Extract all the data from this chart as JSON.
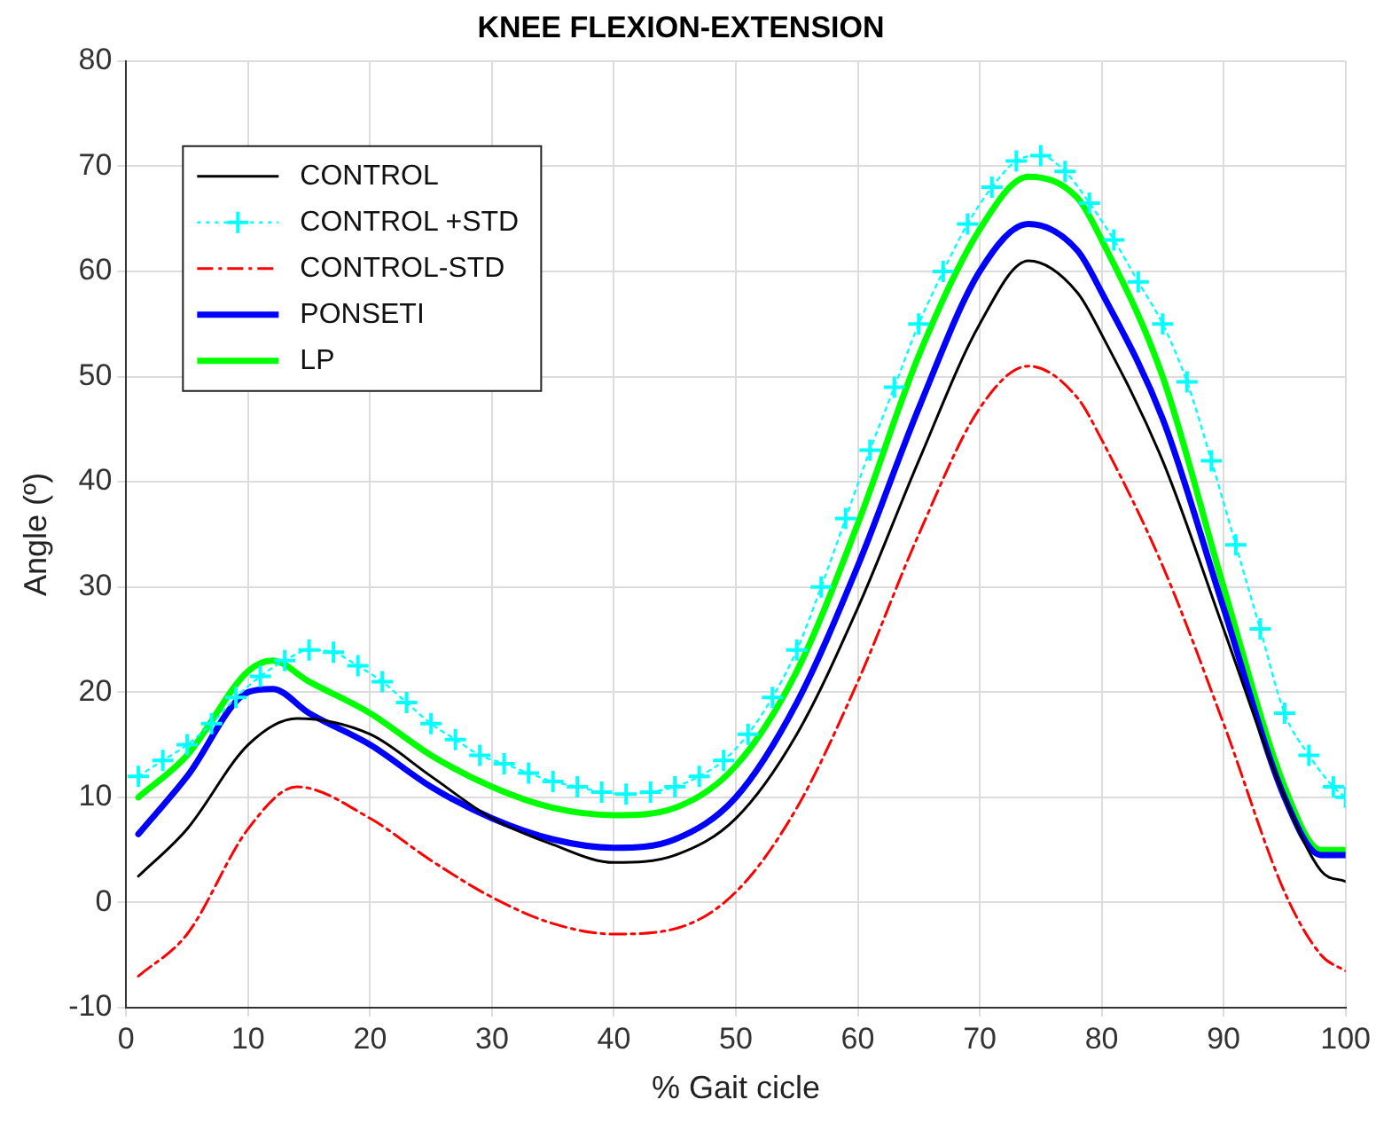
{
  "chart_data": {
    "type": "line",
    "title": "KNEE FLEXION-EXTENSION",
    "xlabel": "% Gait cicle",
    "ylabel": "Angle (º)",
    "xlim": [
      0,
      100
    ],
    "xticks": [
      0,
      10,
      20,
      30,
      40,
      50,
      60,
      70,
      80,
      90,
      100
    ],
    "ylim": [
      -10,
      80
    ],
    "yticks": [
      -10,
      0,
      10,
      20,
      30,
      40,
      50,
      60,
      70,
      80
    ],
    "grid": true,
    "legend": "top left",
    "series": [
      {
        "name": "CONTROL",
        "color": "#000000",
        "line_style": "solid",
        "marker": "none",
        "x": [
          1,
          5,
          10,
          14,
          20,
          25,
          30,
          35,
          40,
          45,
          50,
          55,
          60,
          65,
          70,
          74,
          78,
          80,
          85,
          90,
          95,
          98,
          100
        ],
        "values": [
          2.5,
          7,
          15,
          17.5,
          16,
          12,
          8,
          5.5,
          3.8,
          4.5,
          8,
          16,
          28,
          42,
          55,
          61,
          58,
          54,
          42,
          26,
          10,
          3,
          2
        ]
      },
      {
        "name": "CONTROL +STD",
        "color": "#00ffff",
        "line_style": "dotted",
        "marker": "cross",
        "x": [
          1,
          3,
          5,
          7,
          9,
          11,
          13,
          15,
          17,
          19,
          21,
          23,
          25,
          27,
          29,
          31,
          33,
          35,
          37,
          39,
          41,
          43,
          45,
          47,
          49,
          51,
          53,
          55,
          57,
          59,
          61,
          63,
          65,
          67,
          69,
          71,
          73,
          75,
          77,
          79,
          81,
          83,
          85,
          87,
          89,
          91,
          93,
          95,
          97,
          99,
          100
        ],
        "values": [
          12,
          13.5,
          15,
          17,
          19.5,
          21.5,
          23,
          24,
          23.8,
          22.5,
          21,
          19,
          17,
          15.5,
          14,
          13.2,
          12.3,
          11.5,
          11,
          10.5,
          10.3,
          10.5,
          11,
          12,
          13.5,
          16,
          19.5,
          24,
          30,
          36.5,
          43,
          49,
          55,
          60,
          64.5,
          68,
          70.5,
          71,
          69.5,
          66.5,
          63,
          59,
          55,
          49.5,
          42,
          34,
          26,
          18,
          14,
          11,
          10
        ]
      },
      {
        "name": "CONTROL-STD",
        "color": "#ff0000",
        "line_style": "dashed",
        "marker": "none",
        "x": [
          1,
          5,
          10,
          14,
          20,
          25,
          30,
          35,
          40,
          45,
          50,
          55,
          60,
          65,
          70,
          74,
          78,
          80,
          85,
          90,
          95,
          98,
          100
        ],
        "values": [
          -7,
          -3,
          7,
          11,
          8,
          4,
          0.5,
          -2,
          -3,
          -2.5,
          1,
          9,
          21,
          35,
          47,
          51,
          48,
          44,
          32,
          17,
          1,
          -5,
          -6.5
        ]
      },
      {
        "name": "PONSETI",
        "color": "#0000ff",
        "line_style": "solid",
        "marker": "none",
        "x": [
          1,
          5,
          10,
          12,
          15,
          20,
          25,
          30,
          35,
          40,
          45,
          50,
          55,
          60,
          65,
          70,
          74,
          78,
          80,
          85,
          90,
          95,
          98,
          100
        ],
        "values": [
          6.5,
          12,
          20,
          20.3,
          18,
          15,
          11,
          8,
          6,
          5.2,
          6,
          10,
          19,
          32,
          47,
          60,
          64.5,
          62,
          58,
          46,
          28,
          10,
          4.5,
          4.5
        ]
      },
      {
        "name": "LP",
        "color": "#00ff00",
        "line_style": "solid",
        "marker": "none",
        "x": [
          1,
          5,
          10,
          12,
          15,
          20,
          25,
          30,
          35,
          40,
          45,
          50,
          55,
          60,
          65,
          70,
          74,
          78,
          80,
          85,
          90,
          95,
          98,
          100
        ],
        "values": [
          10,
          14,
          22,
          23,
          21,
          18,
          14,
          11,
          9,
          8.3,
          9,
          13,
          22,
          36,
          52,
          64,
          69,
          67,
          63,
          50,
          30,
          11,
          5,
          5
        ]
      }
    ]
  }
}
